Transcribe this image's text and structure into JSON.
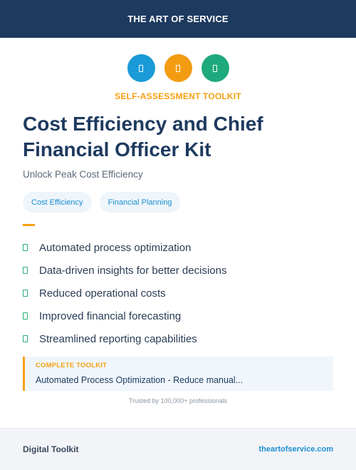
{
  "header": {
    "brand": "THE ART OF SERVICE"
  },
  "icons": [
    {
      "name": "doc-icon",
      "color": "#1a9ad6"
    },
    {
      "name": "doc-icon",
      "color": "#f39c12"
    },
    {
      "name": "doc-icon",
      "color": "#1ea97c"
    }
  ],
  "kicker": "SELF-ASSESSMENT TOOLKIT",
  "title": "Cost Efficiency and Chief Financial Officer Kit",
  "subtitle": "Unlock Peak Cost Efficiency",
  "tags": [
    "Cost Efficiency",
    "Financial Planning"
  ],
  "features": [
    "Automated process optimization",
    "Data-driven insights for better decisions",
    "Reduced operational costs",
    "Improved financial forecasting",
    "Streamlined reporting capabilities"
  ],
  "callout": {
    "label": "COMPLETE TOOLKIT",
    "text": "Automated Process Optimization - Reduce manual..."
  },
  "trusted": "Trusted by 100,000+ professionals",
  "footer": {
    "left": "Digital Toolkit",
    "right": "theartofservice.com"
  },
  "colors": {
    "navy": "#1e3a5f",
    "accent": "#f5a012",
    "link": "#1d8fd0",
    "check": "#27ae72"
  }
}
